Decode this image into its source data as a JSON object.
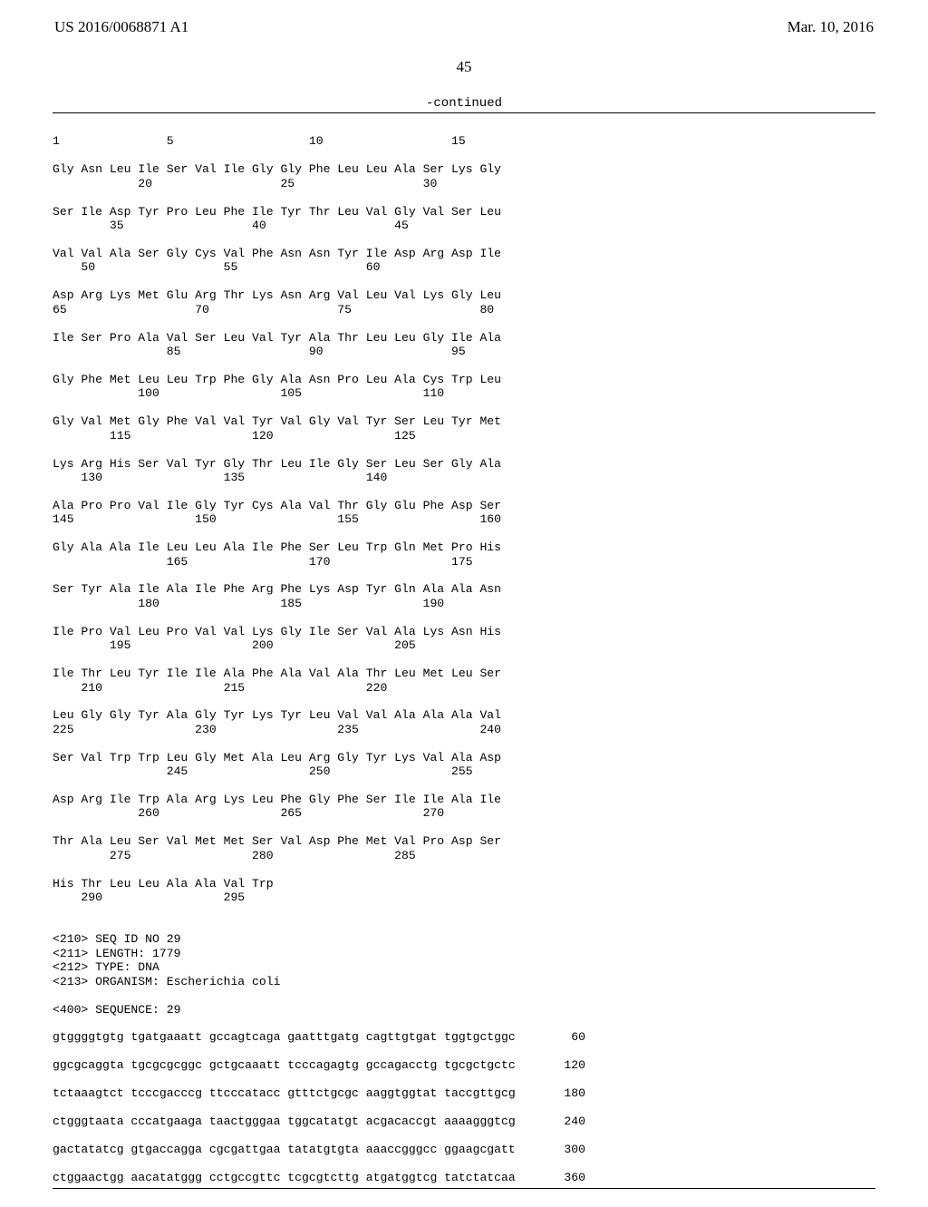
{
  "header": {
    "left": "US 2016/0068871 A1",
    "right": "Mar. 10, 2016"
  },
  "page_number": "45",
  "continued_label": "-continued",
  "protein": {
    "ruler": "1               5                   10                  15",
    "rows": [
      {
        "aa": "Gly Asn Leu Ile Ser Val Ile Gly Gly Phe Leu Leu Ala Ser Lys Gly",
        "nums": "            20                  25                  30"
      },
      {
        "aa": "Ser Ile Asp Tyr Pro Leu Phe Ile Tyr Thr Leu Val Gly Val Ser Leu",
        "nums": "        35                  40                  45"
      },
      {
        "aa": "Val Val Ala Ser Gly Cys Val Phe Asn Asn Tyr Ile Asp Arg Asp Ile",
        "nums": "    50                  55                  60"
      },
      {
        "aa": "Asp Arg Lys Met Glu Arg Thr Lys Asn Arg Val Leu Val Lys Gly Leu",
        "nums": "65                  70                  75                  80"
      },
      {
        "aa": "Ile Ser Pro Ala Val Ser Leu Val Tyr Ala Thr Leu Leu Gly Ile Ala",
        "nums": "                85                  90                  95"
      },
      {
        "aa": "Gly Phe Met Leu Leu Trp Phe Gly Ala Asn Pro Leu Ala Cys Trp Leu",
        "nums": "            100                 105                 110"
      },
      {
        "aa": "Gly Val Met Gly Phe Val Val Tyr Val Gly Val Tyr Ser Leu Tyr Met",
        "nums": "        115                 120                 125"
      },
      {
        "aa": "Lys Arg His Ser Val Tyr Gly Thr Leu Ile Gly Ser Leu Ser Gly Ala",
        "nums": "    130                 135                 140"
      },
      {
        "aa": "Ala Pro Pro Val Ile Gly Tyr Cys Ala Val Thr Gly Glu Phe Asp Ser",
        "nums": "145                 150                 155                 160"
      },
      {
        "aa": "Gly Ala Ala Ile Leu Leu Ala Ile Phe Ser Leu Trp Gln Met Pro His",
        "nums": "                165                 170                 175"
      },
      {
        "aa": "Ser Tyr Ala Ile Ala Ile Phe Arg Phe Lys Asp Tyr Gln Ala Ala Asn",
        "nums": "            180                 185                 190"
      },
      {
        "aa": "Ile Pro Val Leu Pro Val Val Lys Gly Ile Ser Val Ala Lys Asn His",
        "nums": "        195                 200                 205"
      },
      {
        "aa": "Ile Thr Leu Tyr Ile Ile Ala Phe Ala Val Ala Thr Leu Met Leu Ser",
        "nums": "    210                 215                 220"
      },
      {
        "aa": "Leu Gly Gly Tyr Ala Gly Tyr Lys Tyr Leu Val Val Ala Ala Ala Val",
        "nums": "225                 230                 235                 240"
      },
      {
        "aa": "Ser Val Trp Trp Leu Gly Met Ala Leu Arg Gly Tyr Lys Val Ala Asp",
        "nums": "                245                 250                 255"
      },
      {
        "aa": "Asp Arg Ile Trp Ala Arg Lys Leu Phe Gly Phe Ser Ile Ile Ala Ile",
        "nums": "            260                 265                 270"
      },
      {
        "aa": "Thr Ala Leu Ser Val Met Met Ser Val Asp Phe Met Val Pro Asp Ser",
        "nums": "        275                 280                 285"
      },
      {
        "aa": "His Thr Leu Leu Ala Ala Val Trp",
        "nums": "    290                 295"
      }
    ]
  },
  "seq_meta": [
    "<210> SEQ ID NO 29",
    "<211> LENGTH: 1779",
    "<212> TYPE: DNA",
    "<213> ORGANISM: Escherichia coli"
  ],
  "sequence_label": "<400> SEQUENCE: 29",
  "nucleotide_rows": [
    {
      "seq": "gtggggtgtg tgatgaaatt gccagtcaga gaatttgatg cagttgtgat tggtgctggc",
      "pos": "60"
    },
    {
      "seq": "ggcgcaggta tgcgcgcggc gctgcaaatt tcccagagtg gccagacctg tgcgctgctc",
      "pos": "120"
    },
    {
      "seq": "tctaaagtct tcccgacccg ttcccatacc gtttctgcgc aaggtggtat taccgttgcg",
      "pos": "180"
    },
    {
      "seq": "ctgggtaata cccatgaaga taactgggaa tggcatatgt acgacaccgt aaaagggtcg",
      "pos": "240"
    },
    {
      "seq": "gactatatcg gtgaccagga cgcgattgaa tatatgtgta aaaccgggcc ggaagcgatt",
      "pos": "300"
    },
    {
      "seq": "ctggaactgg aacatatggg cctgccgttc tcgcgtcttg atgatggtcg tatctatcaa",
      "pos": "360"
    }
  ]
}
